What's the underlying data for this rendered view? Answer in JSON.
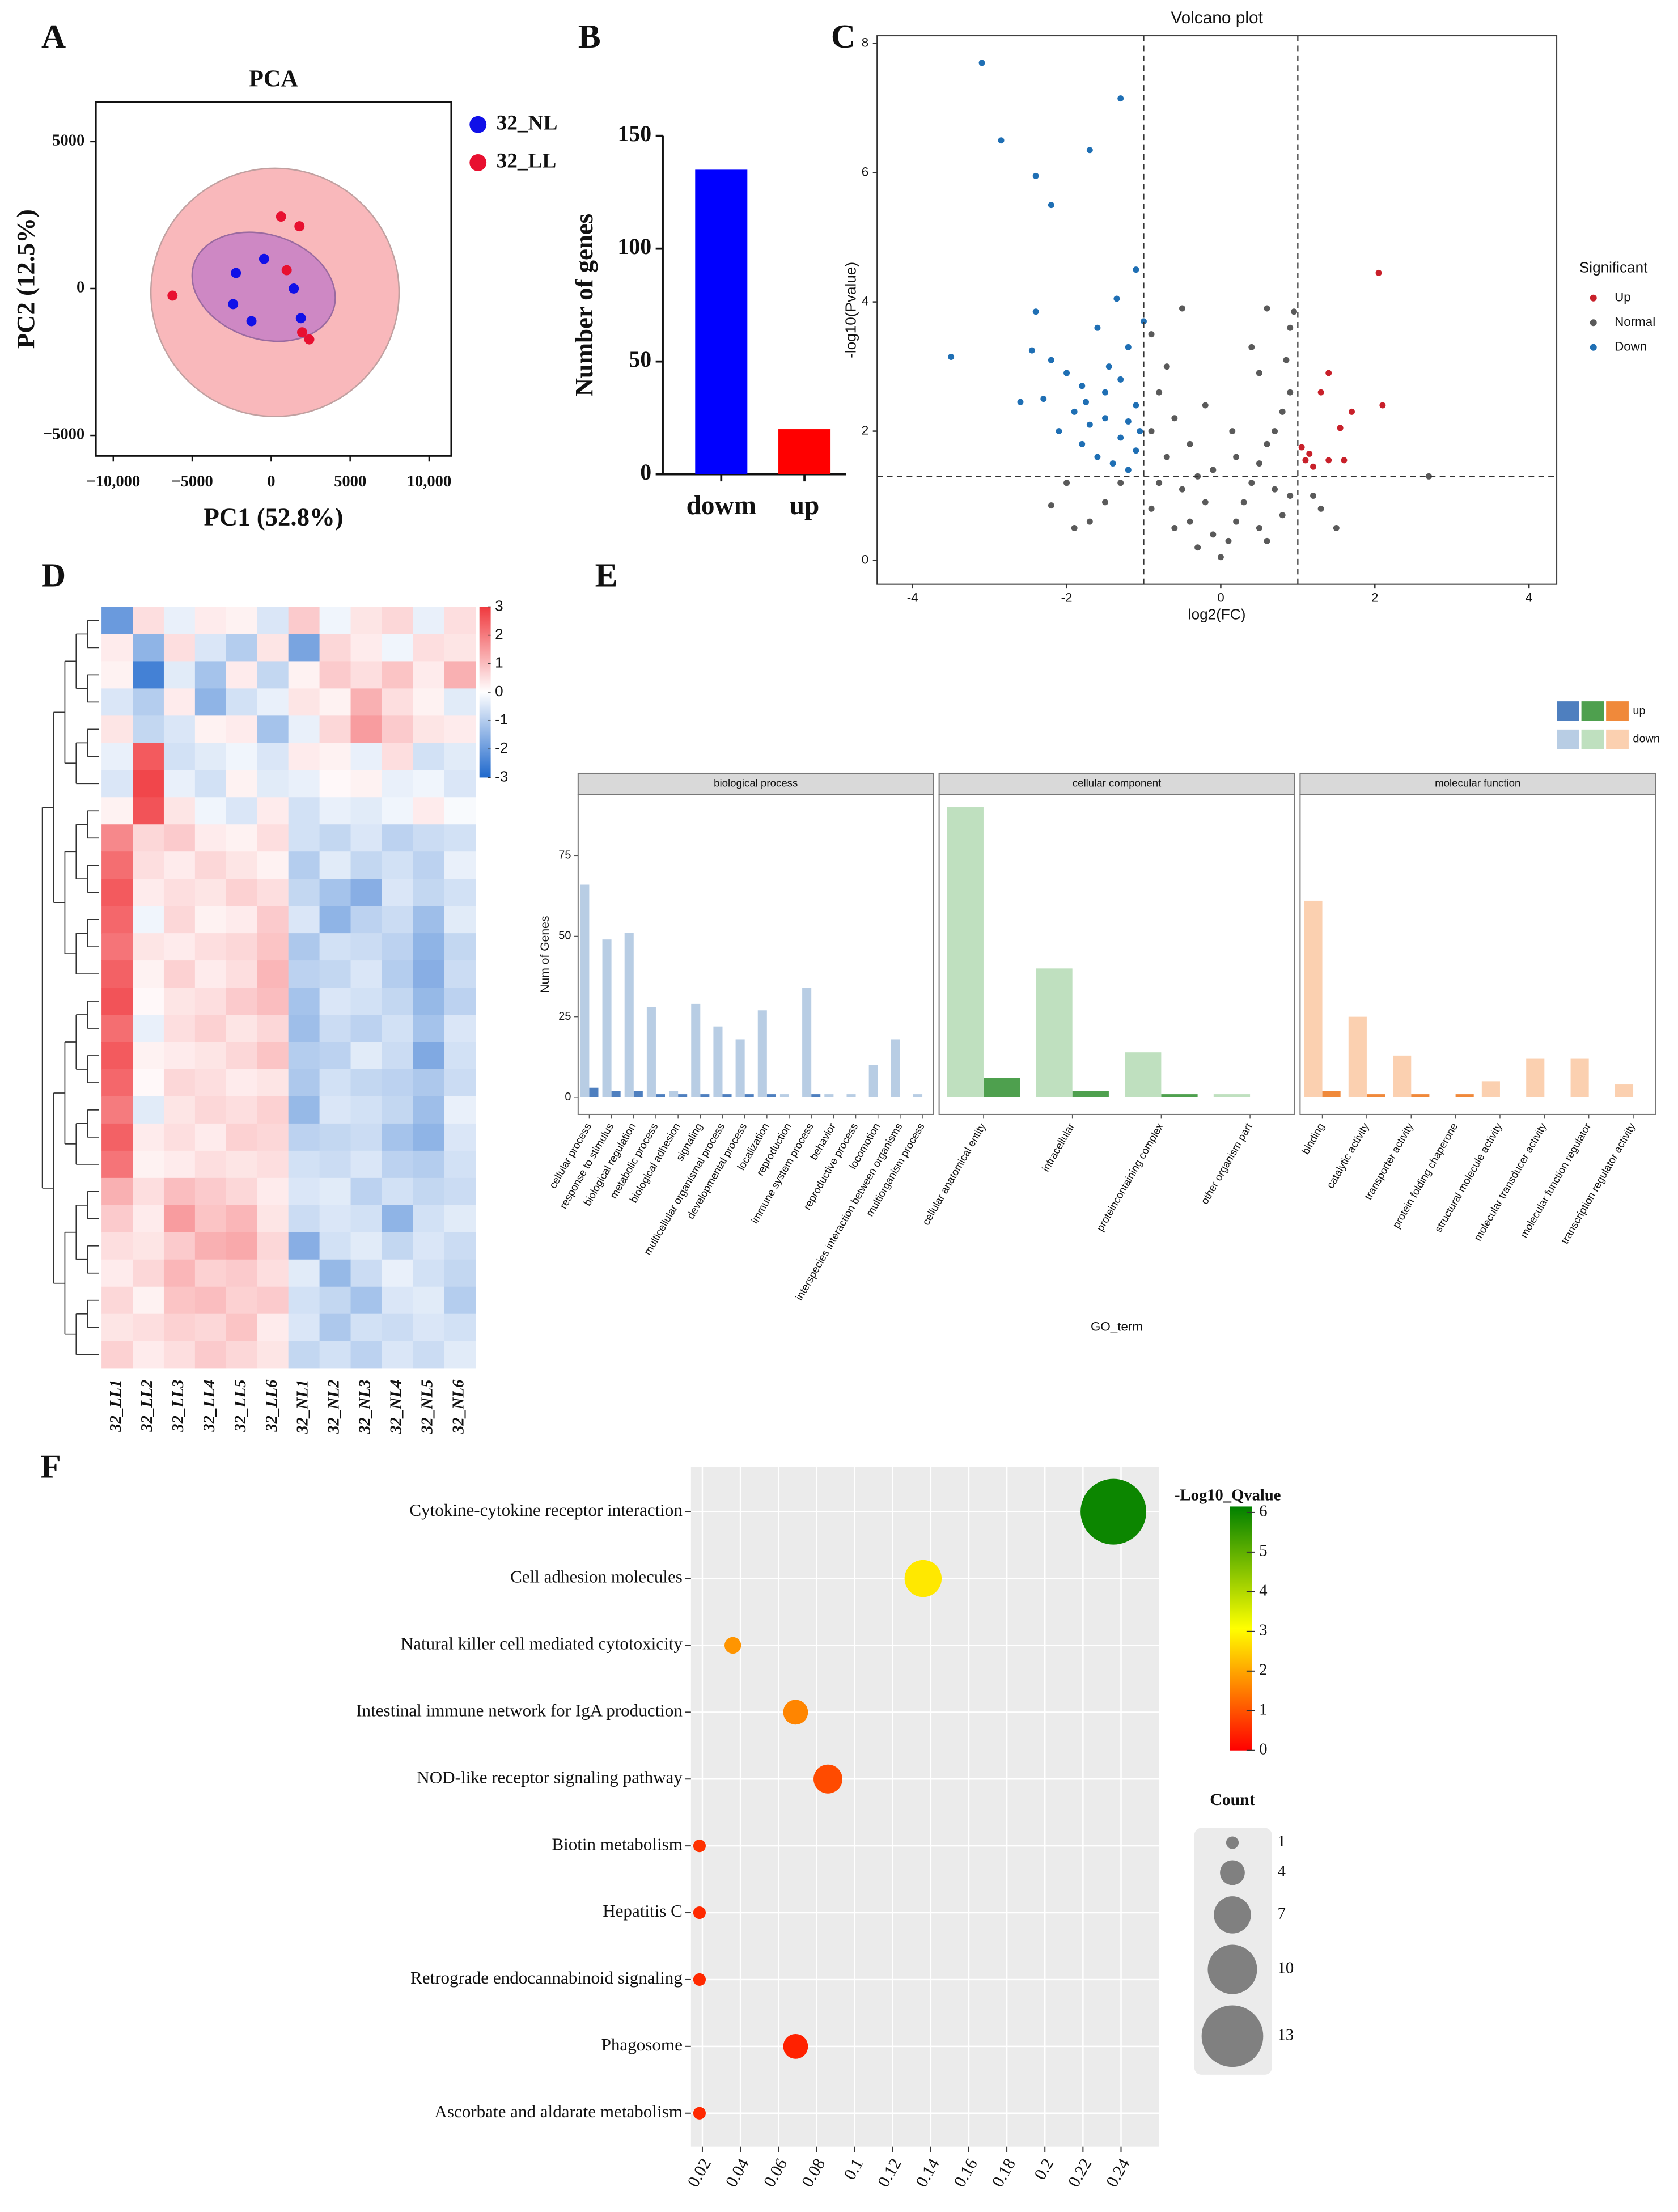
{
  "chart_data": [
    {
      "label": "A",
      "type": "scatter",
      "title": "PCA",
      "xlabel": "PC1 (52.8%)",
      "ylabel": "PC2 (12.5%)",
      "xlim": [
        -11100,
        11400
      ],
      "ylim": [
        -5700,
        6350
      ],
      "xticks": [
        {
          "value": -10000,
          "label": "−10,000"
        },
        {
          "value": -5000,
          "label": "−5000"
        },
        0,
        5000,
        {
          "value": 10000,
          "label": "10,000"
        }
      ],
      "yticks": [
        {
          "value": -5000,
          "label": "−5000"
        },
        0,
        5000
      ],
      "series": [
        {
          "name": "32_NL",
          "color": "#1010e8",
          "x": [
            -450,
            -2230,
            1430,
            -2410,
            -1250,
            1880
          ],
          "y": [
            1010,
            530,
            0,
            -530,
            -1110,
            -1010
          ]
        },
        {
          "name": "32_LL",
          "color": "#e81030",
          "x": [
            625,
            1790,
            980,
            -6250,
            1960,
            2410
          ],
          "y": [
            2450,
            2120,
            625,
            -240,
            -1490,
            -1730
          ]
        }
      ]
    },
    {
      "label": "B",
      "type": "bar",
      "ylabel": "Number of genes",
      "categories": [
        "dowm",
        "up"
      ],
      "values": [
        135,
        20
      ],
      "colors": [
        "#0000ff",
        "#ff0000"
      ],
      "ylim": [
        0,
        150
      ],
      "yticks": [
        0,
        50,
        100,
        150
      ]
    },
    {
      "label": "C",
      "type": "volcano",
      "title": "Volcano plot",
      "xlabel": "log2(FC)",
      "ylabel": "-log10(Pvalue)",
      "legend_title": "Significant",
      "xlim": [
        -4.46,
        4.36
      ],
      "ylim": [
        -0.37,
        8.12
      ],
      "xticks": [
        -4,
        -2,
        0,
        2,
        4
      ],
      "yticks": [
        0,
        2,
        4,
        6,
        8
      ],
      "vlines": [
        -1,
        1
      ],
      "hline": 1.3,
      "series": [
        {
          "name": "Up",
          "color": "#c8202a",
          "x": [
            2.05,
            2.1,
            1.7,
            1.55,
            1.3,
            1.4,
            1.05,
            1.1,
            1.2,
            1.4,
            1.6,
            1.15
          ],
          "y": [
            4.45,
            2.4,
            2.3,
            2.05,
            2.6,
            2.9,
            1.75,
            1.55,
            1.45,
            1.55,
            1.55,
            1.65
          ]
        },
        {
          "name": "Normal",
          "color": "#5a5a5a",
          "x": [
            -0.5,
            -0.9,
            -0.7,
            -0.8,
            -0.6,
            -0.9,
            -0.4,
            -0.7,
            -0.3,
            -0.5,
            -0.8,
            -0.2,
            -0.4,
            -0.6,
            -0.1,
            -0.3,
            0,
            0.1,
            0.2,
            0.3,
            0.4,
            0.5,
            0.6,
            0.7,
            0.8,
            0.9,
            0.5,
            0.85,
            0.4,
            0.9,
            0.6,
            0.95,
            0.7,
            0.9,
            0.5,
            0.8,
            0.6,
            -0.9,
            -1.3,
            -1.7,
            -2.2,
            -1.9,
            -1.5,
            -2.0,
            1.2,
            1.5,
            1.3,
            2.7,
            0.2,
            -0.2,
            0.15,
            -0.1
          ],
          "y": [
            3.9,
            3.5,
            3.0,
            2.6,
            2.2,
            2.0,
            1.8,
            1.6,
            1.3,
            1.1,
            1.2,
            0.9,
            0.6,
            0.5,
            0.4,
            0.2,
            0.05,
            0.3,
            0.6,
            0.9,
            1.2,
            1.5,
            1.8,
            2.0,
            2.3,
            2.6,
            2.9,
            3.1,
            3.3,
            3.6,
            3.9,
            3.85,
            1.1,
            1.0,
            0.5,
            0.7,
            0.3,
            0.8,
            1.2,
            0.6,
            0.85,
            0.5,
            0.9,
            1.2,
            1.0,
            0.5,
            0.8,
            1.3,
            1.6,
            2.4,
            2.0,
            1.4
          ]
        },
        {
          "name": "Down",
          "color": "#1f6fb4",
          "x": [
            -3.1,
            -2.85,
            -2.4,
            -2.2,
            -1.7,
            -1.3,
            -3.5,
            -2.4,
            -1.1,
            -1.35,
            -1.6,
            -2.45,
            -2.2,
            -2.0,
            -1.8,
            -1.5,
            -1.3,
            -1.2,
            -1.1,
            -1.5,
            -1.7,
            -1.9,
            -2.1,
            -2.3,
            -1.3,
            -1.1,
            -1.6,
            -1.8,
            -1.4,
            -1.2,
            -1.05,
            -2.6,
            -1.75,
            -1.45,
            -1.2,
            -1.0
          ],
          "y": [
            7.7,
            6.5,
            5.95,
            5.5,
            6.35,
            7.15,
            3.15,
            3.85,
            4.5,
            4.05,
            3.6,
            3.25,
            3.1,
            2.9,
            2.7,
            2.6,
            2.8,
            3.3,
            2.4,
            2.2,
            2.1,
            2.3,
            2.0,
            2.5,
            1.9,
            1.7,
            1.6,
            1.8,
            1.5,
            1.4,
            2.0,
            2.45,
            2.45,
            3.0,
            2.15,
            3.7
          ]
        }
      ]
    },
    {
      "label": "D",
      "type": "heatmap",
      "columns": [
        "32_LL1",
        "32_LL2",
        "32_LL3",
        "32_LL4",
        "32_LL5",
        "32_LL6",
        "32_NL1",
        "32_NL2",
        "32_NL3",
        "32_NL4",
        "32_NL5",
        "32_NL6"
      ],
      "clim": [
        -3,
        3
      ],
      "colorscale": [
        "#1f68cc",
        "#ffffff",
        "#f0393e"
      ],
      "cticks": [
        3,
        2,
        1,
        0,
        -1,
        -2,
        -3
      ],
      "values": [
        [
          -2,
          0.5,
          -0.3,
          0.3,
          0.2,
          -0.5,
          0.8,
          -0.2,
          0.4,
          0.6,
          -0.3,
          0.5
        ],
        [
          0.3,
          -1.5,
          0.5,
          -0.5,
          -1,
          0.4,
          -1.8,
          0.6,
          0.3,
          -0.2,
          0.5,
          0.4
        ],
        [
          0.2,
          -2.5,
          -0.4,
          -1.2,
          0.3,
          -0.8,
          0.2,
          0.8,
          0.5,
          0.9,
          0.3,
          1.2
        ],
        [
          -0.5,
          -1,
          0.3,
          -1.5,
          -0.6,
          -0.3,
          0.4,
          0.2,
          1.2,
          0.5,
          0.2,
          -0.4
        ],
        [
          0.4,
          -0.8,
          -0.5,
          0.2,
          0.3,
          -1.2,
          -0.3,
          0.6,
          1.5,
          0.8,
          0.4,
          0.3
        ],
        [
          -0.3,
          2.5,
          -0.6,
          -0.4,
          -0.2,
          -0.5,
          0.3,
          0.2,
          -0.3,
          0.5,
          -0.6,
          -0.4
        ],
        [
          -0.5,
          2.8,
          -0.3,
          -0.6,
          0.2,
          -0.4,
          -0.3,
          0.1,
          0.2,
          -0.3,
          -0.2,
          -0.5
        ],
        [
          0.2,
          2.6,
          0.4,
          -0.2,
          -0.5,
          0.3,
          -0.6,
          -0.3,
          -0.4,
          -0.2,
          0.3,
          -0.1
        ],
        [
          1.8,
          0.6,
          0.8,
          0.3,
          0.2,
          0.5,
          -0.6,
          -0.8,
          -0.5,
          -0.9,
          -0.7,
          -0.6
        ],
        [
          2.2,
          0.5,
          0.3,
          0.6,
          0.4,
          0.2,
          -1,
          -0.4,
          -0.8,
          -0.6,
          -0.9,
          -0.3
        ],
        [
          2.5,
          0.3,
          0.5,
          0.4,
          0.7,
          0.5,
          -0.8,
          -1.2,
          -1.6,
          -0.5,
          -0.8,
          -0.6
        ],
        [
          2.3,
          -0.2,
          0.6,
          0.2,
          0.3,
          0.8,
          -0.5,
          -1.5,
          -0.9,
          -0.7,
          -1.3,
          -0.4
        ],
        [
          2.1,
          0.4,
          0.3,
          0.5,
          0.6,
          0.9,
          -1.1,
          -0.6,
          -0.7,
          -0.9,
          -1.5,
          -0.8
        ],
        [
          2.4,
          0.2,
          0.7,
          0.3,
          0.5,
          1.1,
          -0.9,
          -0.8,
          -0.5,
          -1,
          -1.6,
          -0.7
        ],
        [
          2.6,
          0.1,
          0.4,
          0.5,
          0.8,
          1.0,
          -1.2,
          -0.5,
          -0.6,
          -0.8,
          -1.4,
          -0.9
        ],
        [
          2.2,
          -0.3,
          0.5,
          0.7,
          0.4,
          0.6,
          -1.3,
          -0.7,
          -0.9,
          -0.6,
          -1.2,
          -0.5
        ],
        [
          2.5,
          0.2,
          0.3,
          0.4,
          0.6,
          0.9,
          -1.0,
          -0.9,
          -0.4,
          -0.7,
          -1.7,
          -0.6
        ],
        [
          2.3,
          0.1,
          0.6,
          0.5,
          0.3,
          0.4,
          -1.1,
          -0.6,
          -0.8,
          -0.9,
          -1.1,
          -0.7
        ],
        [
          2.0,
          -0.4,
          0.4,
          0.6,
          0.5,
          0.7,
          -1.4,
          -0.5,
          -0.6,
          -0.8,
          -1.3,
          -0.3
        ],
        [
          2.4,
          0.3,
          0.5,
          0.3,
          0.7,
          0.6,
          -0.9,
          -0.8,
          -0.7,
          -1.2,
          -1.5,
          -0.5
        ],
        [
          2.1,
          0.2,
          0.3,
          0.5,
          0.4,
          0.5,
          -0.6,
          -0.7,
          -0.5,
          -0.9,
          -1.0,
          -0.6
        ],
        [
          1.2,
          0.5,
          1.0,
          0.8,
          0.6,
          0.3,
          -0.5,
          -0.4,
          -0.9,
          -0.6,
          -0.8,
          -0.7
        ],
        [
          0.8,
          0.3,
          1.5,
          0.9,
          1.1,
          0.4,
          -0.7,
          -0.5,
          -0.6,
          -1.5,
          -0.6,
          -0.4
        ],
        [
          0.5,
          0.4,
          0.8,
          1.2,
          1.3,
          0.6,
          -1.6,
          -0.6,
          -0.4,
          -0.8,
          -0.5,
          -0.7
        ],
        [
          0.3,
          0.6,
          1.1,
          0.7,
          0.8,
          0.5,
          -0.4,
          -1.4,
          -0.7,
          -0.3,
          -0.6,
          -0.8
        ],
        [
          0.6,
          0.2,
          0.9,
          1.0,
          0.7,
          0.8,
          -0.6,
          -0.8,
          -1.2,
          -0.5,
          -0.4,
          -1.0
        ],
        [
          0.4,
          0.5,
          0.7,
          0.6,
          0.9,
          0.3,
          -0.5,
          -1.1,
          -0.6,
          -0.7,
          -0.5,
          -0.6
        ],
        [
          0.7,
          0.3,
          0.5,
          0.8,
          0.6,
          0.4,
          -0.8,
          -0.6,
          -0.9,
          -0.5,
          -0.7,
          -0.4
        ]
      ]
    },
    {
      "label": "E",
      "type": "faceted_bar",
      "xlabel": "GO_term",
      "ylabel": "Num of Genes",
      "ylim": [
        -5.3,
        94
      ],
      "yticks": [
        0,
        25,
        50,
        75
      ],
      "series": [
        {
          "name": "up",
          "colors": [
            "#4e7fbf",
            "#4ea04e",
            "#f0893a"
          ]
        },
        {
          "name": "down",
          "colors": [
            "#b8cde4",
            "#bfe0bf",
            "#fbd0b0"
          ]
        }
      ],
      "facets": [
        {
          "name": "biological process",
          "categories": [
            "cellular process",
            "response to stimulus",
            "biological regulation",
            "metabolic process",
            "biological adhesion",
            "signaling",
            "multicellular organismal process",
            "developmental process",
            "localization",
            "reproduction",
            "immune system process",
            "behavior",
            "reproductive process",
            "locomotion",
            "interspecies interaction between organisms",
            "multiorganism process"
          ],
          "values": [
            [
              3,
              2,
              2,
              1,
              1,
              1,
              1,
              1,
              1,
              0,
              1,
              0,
              0,
              0,
              0,
              0
            ],
            [
              66,
              49,
              51,
              28,
              2,
              29,
              22,
              18,
              27,
              1,
              34,
              1,
              1,
              10,
              18,
              1
            ]
          ]
        },
        {
          "name": "cellular component",
          "categories": [
            "cellular anatomical entity",
            "intracellular",
            "proteincontaining complex",
            "other organism part"
          ],
          "values": [
            [
              6,
              2,
              1,
              0
            ],
            [
              90,
              40,
              14,
              1
            ]
          ]
        },
        {
          "name": "molecular function",
          "categories": [
            "binding",
            "catalytic activity",
            "transporter activity",
            "protein folding chaperone",
            "structural molecule activity",
            "molecular transducer activity",
            "molecular function regulator",
            "transcription regulator activity"
          ],
          "values": [
            [
              2,
              1,
              1,
              1,
              0,
              0,
              0,
              0
            ],
            [
              61,
              25,
              13,
              0,
              5,
              12,
              12,
              4
            ]
          ]
        }
      ]
    },
    {
      "label": "F",
      "type": "bubble",
      "categories": [
        "Cytokine-cytokine receptor interaction",
        "Cell adhesion molecules",
        "Natural killer cell mediated cytotoxicity",
        "Intestinal immune network for IgA production",
        "NOD-like receptor signaling pathway",
        "Biotin metabolism",
        "Hepatitis C",
        "Retrograde endocannabinoid signaling",
        "Phagosome",
        "Ascorbate and aldarate metabolism"
      ],
      "x": [
        0.236,
        0.136,
        0.036,
        0.069,
        0.086,
        0.0185,
        0.0185,
        0.0185,
        0.069,
        0.0185
      ],
      "counts": [
        14,
        7,
        2,
        4,
        5,
        1,
        1,
        1,
        4,
        1
      ],
      "qvalues": [
        6,
        2.8,
        1.8,
        1.6,
        0.9,
        0.6,
        0.5,
        0.5,
        0.4,
        0.5
      ],
      "xlim": [
        0.014,
        0.26
      ],
      "xticks": [
        0.02,
        0.04,
        0.06,
        0.08,
        0.1,
        0.12,
        0.14,
        0.16,
        0.18,
        0.2,
        0.22,
        0.24
      ],
      "colorbar_title": "-Log10_Qvalue",
      "clim": [
        0,
        6.15
      ],
      "cticks": [
        0,
        1,
        2,
        3,
        4,
        5,
        6
      ],
      "colorscale": [
        "#ff0000",
        "#ffff00",
        "#008000"
      ],
      "size_title": "Count",
      "size_legend": [
        1,
        4,
        7,
        10,
        13
      ]
    }
  ]
}
